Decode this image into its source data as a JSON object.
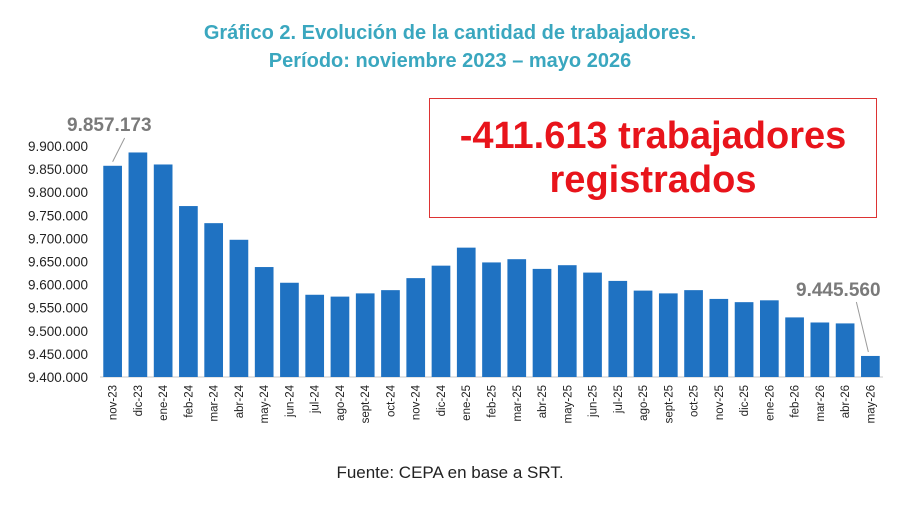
{
  "header": {
    "title": "Gráfico 2. Evolución de la cantidad de trabajadores.",
    "subtitle": "Período: noviembre 2023 – mayo 2026"
  },
  "callout": {
    "line1": "-411.613 trabajadores",
    "line2": "registrados"
  },
  "footer": {
    "source": "Fuente: CEPA en base a SRT."
  },
  "chart_data": {
    "type": "bar",
    "categories": [
      "nov-23",
      "dic-23",
      "ene-24",
      "feb-24",
      "mar-24",
      "abr-24",
      "may-24",
      "jun-24",
      "jul-24",
      "ago-24",
      "sept-24",
      "oct-24",
      "nov-24",
      "dic-24",
      "ene-25",
      "feb-25",
      "mar-25",
      "abr-25",
      "may-25",
      "jun-25",
      "jul-25",
      "ago-25",
      "sept-25",
      "oct-25",
      "nov-25",
      "dic-25",
      "ene-26",
      "feb-26",
      "mar-26",
      "abr-26",
      "may-26"
    ],
    "values": [
      9857173,
      9886000,
      9860000,
      9770000,
      9733000,
      9697000,
      9638000,
      9604000,
      9578000,
      9574000,
      9581000,
      9588000,
      9614000,
      9641000,
      9680000,
      9648000,
      9655000,
      9634000,
      9642000,
      9626000,
      9608000,
      9587000,
      9581000,
      9588000,
      9569000,
      9562000,
      9566000,
      9529000,
      9518000,
      9516000,
      9445560
    ],
    "ylim": [
      9400000,
      9900000
    ],
    "yticks": [
      "9.400.000",
      "9.450.000",
      "9.500.000",
      "9.550.000",
      "9.600.000",
      "9.650.000",
      "9.700.000",
      "9.750.000",
      "9.800.000",
      "9.850.000",
      "9.900.000"
    ],
    "grid": false,
    "bar_color": "#1f72c2",
    "annotations": [
      {
        "index": 0,
        "label": "9.857.173"
      },
      {
        "index": 30,
        "label": "9.445.560"
      }
    ]
  }
}
